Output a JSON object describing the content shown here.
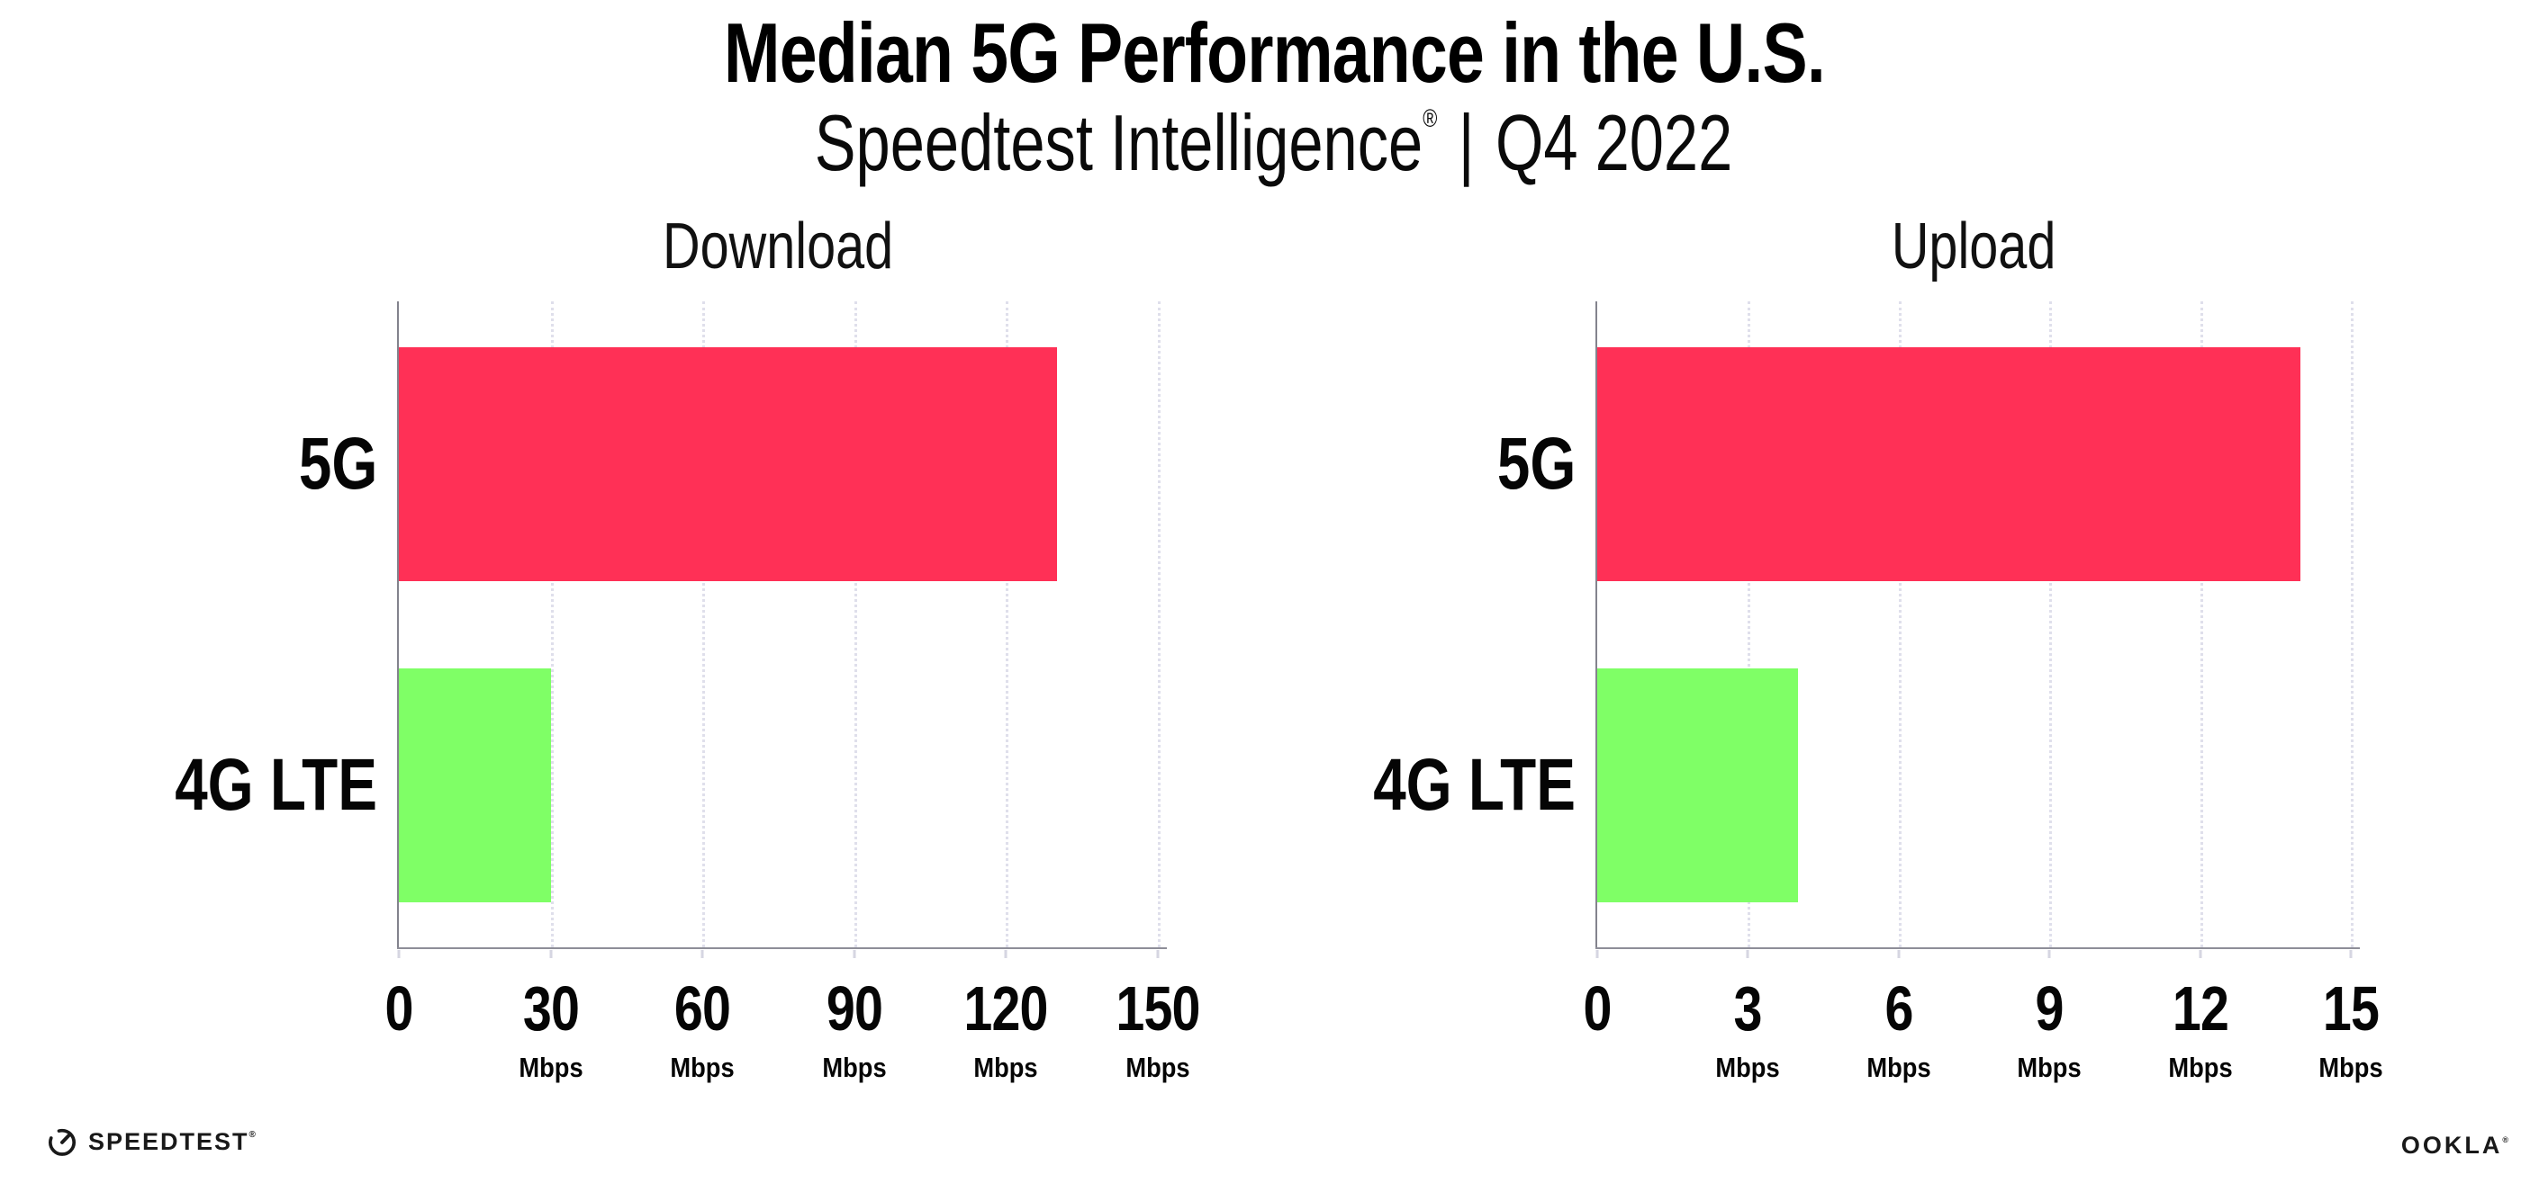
{
  "page": {
    "background": "#ffffff"
  },
  "header": {
    "title": "Median 5G Performance in the U.S.",
    "subtitle": {
      "brand": "Speedtest Intelligence",
      "registered": "®",
      "separator": "|",
      "period": "Q4 2022"
    }
  },
  "chart_data": [
    {
      "type": "bar",
      "orientation": "horizontal",
      "title": "Download",
      "categories": [
        "5G",
        "4G LTE"
      ],
      "values": [
        130,
        30
      ],
      "unit": "Mbps",
      "xlim": [
        0,
        150
      ],
      "xticks": [
        0,
        30,
        60,
        90,
        120,
        150
      ],
      "bar_colors": [
        "#FF3056",
        "#7FFF66"
      ],
      "grid": "dotted vertical gridline at each tick",
      "legend": "none"
    },
    {
      "type": "bar",
      "orientation": "horizontal",
      "title": "Upload",
      "categories": [
        "5G",
        "4G LTE"
      ],
      "values": [
        14,
        4
      ],
      "unit": "Mbps",
      "xlim": [
        0,
        15
      ],
      "xticks": [
        0,
        3,
        6,
        9,
        12,
        15
      ],
      "bar_colors": [
        "#FF3056",
        "#7FFF66"
      ],
      "grid": "dotted vertical gridline at each tick",
      "legend": "none"
    }
  ],
  "footer": {
    "speedtest": {
      "label": "SPEEDTEST",
      "registered": "®"
    },
    "ookla": {
      "label": "OOKLA",
      "registered": "®"
    }
  },
  "colors": {
    "bar_5g": "#FF3056",
    "bar_4g_lte": "#7FFF66",
    "axis_spine": "#8E8E98",
    "gridline": "#DFDFEB",
    "tick_mark": "#D6D6E2",
    "text": "#000000"
  }
}
